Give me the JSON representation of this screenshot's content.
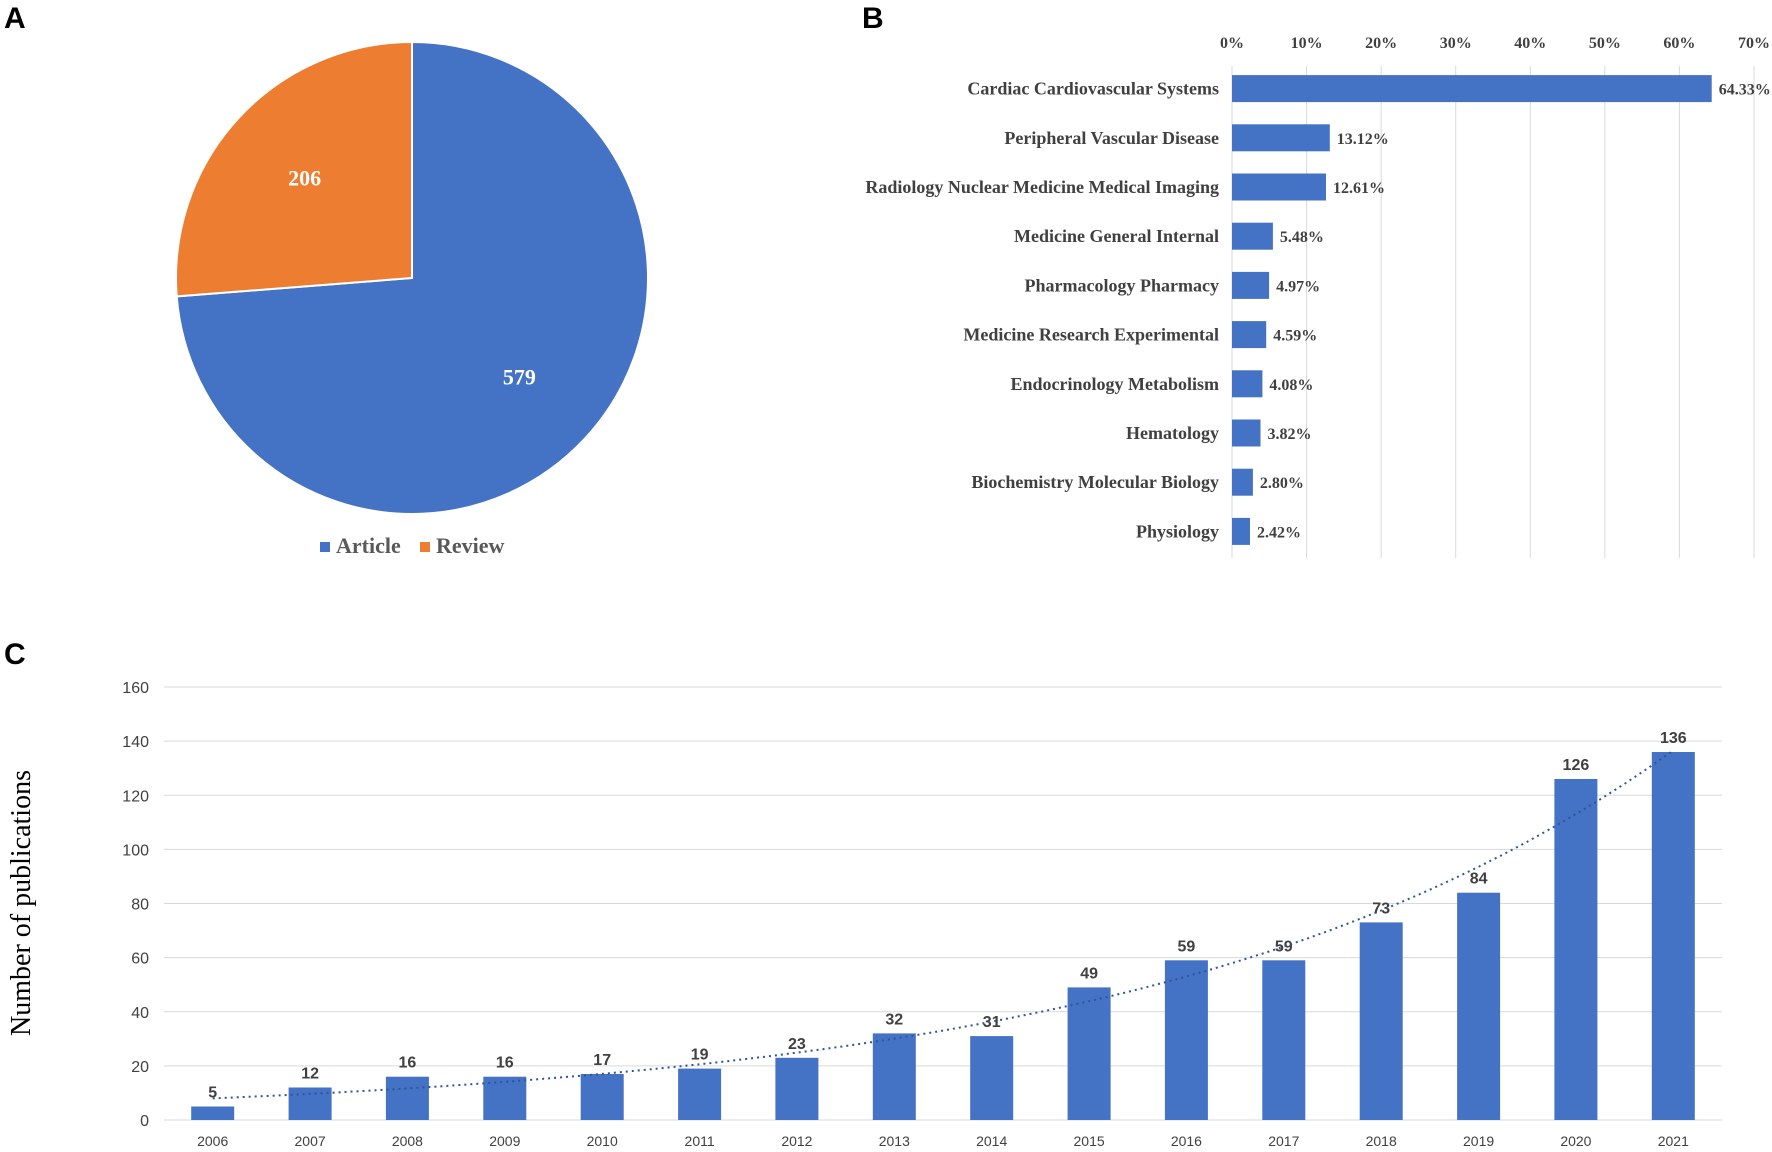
{
  "panels": {
    "a": "A",
    "b": "B",
    "c": "C"
  },
  "colors": {
    "blue": "#4472C4",
    "orange": "#ED7D31",
    "grid": "#d9d9d9",
    "trend": "#2F5597"
  },
  "chart_data": [
    {
      "type": "pie",
      "categories": [
        "Article",
        "Review"
      ],
      "values": [
        579,
        206
      ],
      "colors": [
        "#4472C4",
        "#ED7D31"
      ],
      "legend": "bottom",
      "data_labels": true
    },
    {
      "type": "bar",
      "orientation": "horizontal",
      "categories": [
        "Cardiac Cardiovascular Systems",
        "Peripheral Vascular Disease",
        "Radiology Nuclear Medicine Medical Imaging",
        "Medicine General Internal",
        "Pharmacology Pharmacy",
        "Medicine Research Experimental",
        "Endocrinology Metabolism",
        "Hematology",
        "Biochemistry Molecular Biology",
        "Physiology"
      ],
      "values": [
        64.33,
        13.12,
        12.61,
        5.48,
        4.97,
        4.59,
        4.08,
        3.82,
        2.8,
        2.42
      ],
      "value_labels": [
        "64.33%",
        "13.12%",
        "12.61%",
        "5.48%",
        "4.97%",
        "4.59%",
        "4.08%",
        "3.82%",
        "2.80%",
        "2.42%"
      ],
      "xticks": [
        "0%",
        "10%",
        "20%",
        "30%",
        "40%",
        "50%",
        "60%",
        "70%"
      ],
      "xlim": [
        0,
        70
      ],
      "axis_position": "top",
      "grid": true
    },
    {
      "type": "bar",
      "categories": [
        "2006",
        "2007",
        "2008",
        "2009",
        "2010",
        "2011",
        "2012",
        "2013",
        "2014",
        "2015",
        "2016",
        "2017",
        "2018",
        "2019",
        "2020",
        "2021"
      ],
      "values": [
        5,
        12,
        16,
        16,
        17,
        19,
        23,
        32,
        31,
        49,
        59,
        59,
        73,
        84,
        126,
        136
      ],
      "ylabel": "Number of publications",
      "ylim": [
        0,
        160
      ],
      "yticks": [
        "0",
        "20",
        "40",
        "60",
        "80",
        "100",
        "120",
        "140",
        "160"
      ],
      "grid": true,
      "trendline": "exponential"
    }
  ]
}
